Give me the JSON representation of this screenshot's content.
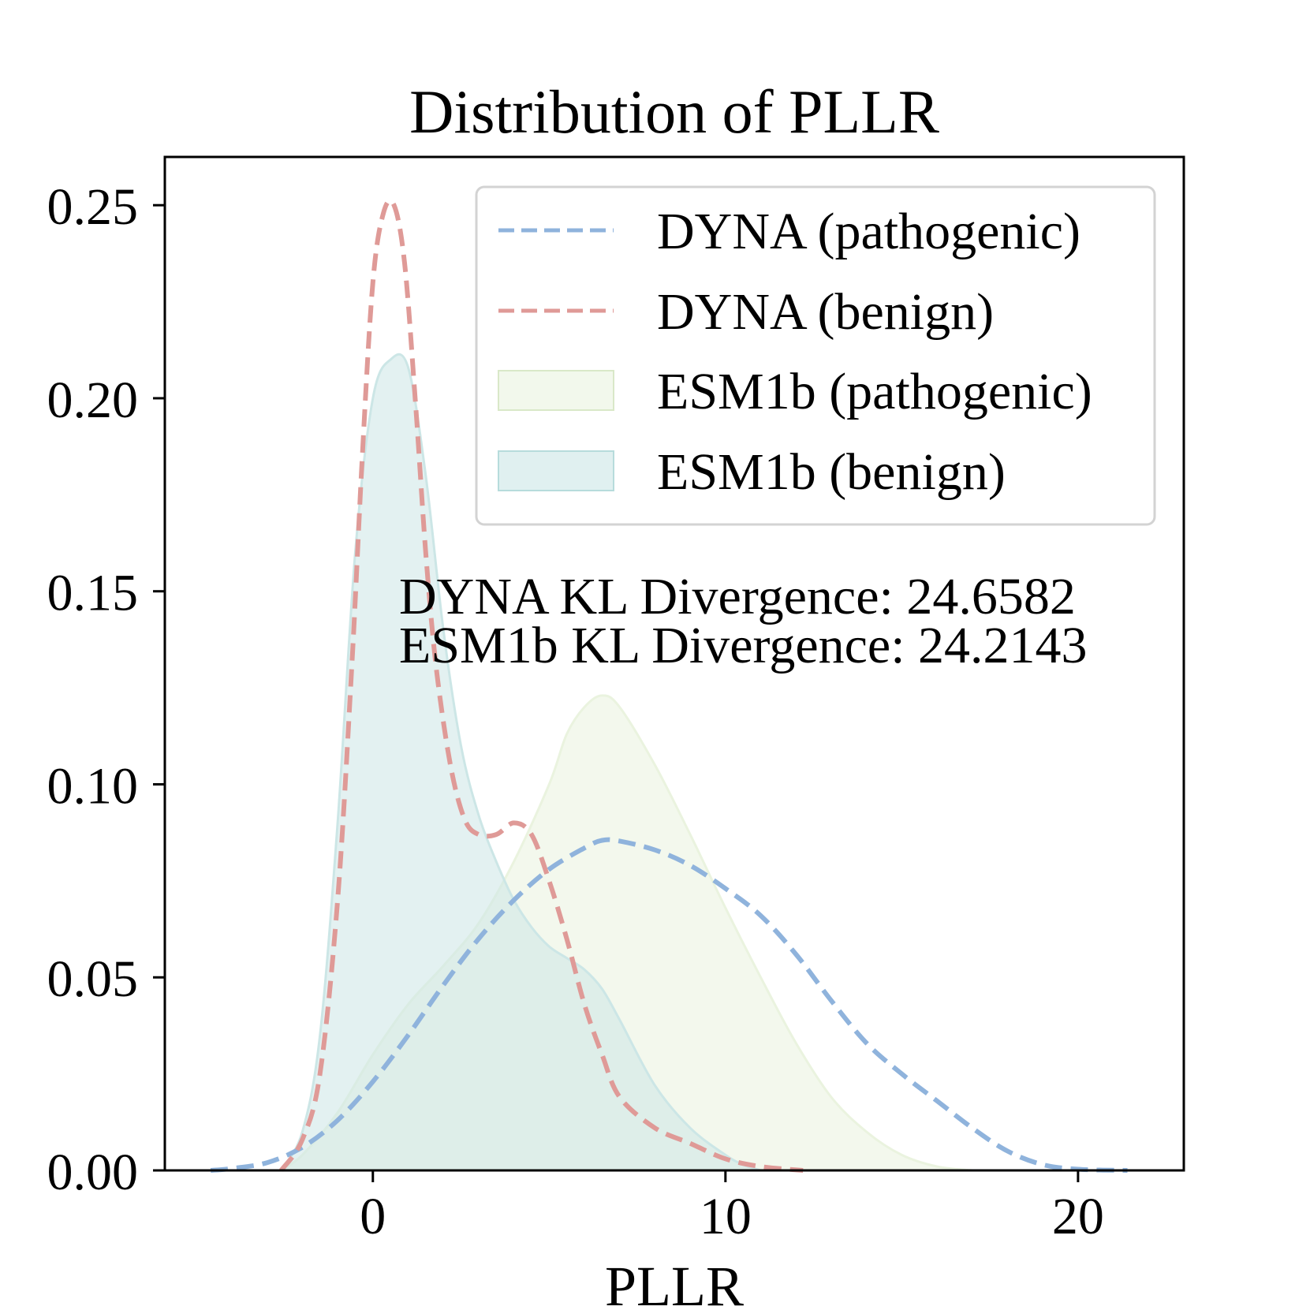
{
  "chart_data": {
    "type": "area",
    "title": "Distribution of PLLR",
    "xlabel": "PLLR",
    "ylabel": "",
    "xlim": [
      -5.9,
      23.0
    ],
    "ylim": [
      0,
      0.2625
    ],
    "xticks": [
      0,
      10,
      20
    ],
    "xtick_labels": [
      "0",
      "10",
      "20"
    ],
    "yticks": [
      0,
      0.05,
      0.1,
      0.15,
      0.2,
      0.25
    ],
    "ytick_labels": [
      "0.00",
      "0.05",
      "0.10",
      "0.15",
      "0.20",
      "0.25"
    ],
    "grid": false,
    "legend_position": "top-right",
    "annotations": [
      "DYNA KL Divergence: 24.6582",
      "ESM1b KL Divergence: 24.2143"
    ],
    "series": [
      {
        "name": "DYNA (pathogenic)",
        "style": "dashed-line",
        "color": "#8fb3dc",
        "x": [
          -4.6,
          -4.0,
          -3.0,
          -2.0,
          -1.0,
          0.0,
          1.0,
          2.0,
          3.0,
          4.0,
          5.0,
          6.0,
          6.5,
          7.0,
          8.0,
          9.0,
          10.0,
          11.0,
          12.0,
          13.0,
          14.0,
          15.0,
          16.0,
          17.0,
          18.0,
          19.0,
          20.0,
          21.4
        ],
        "y": [
          0.0,
          0.0005,
          0.002,
          0.006,
          0.013,
          0.023,
          0.035,
          0.048,
          0.06,
          0.07,
          0.078,
          0.0835,
          0.0855,
          0.0853,
          0.083,
          0.079,
          0.073,
          0.066,
          0.056,
          0.044,
          0.033,
          0.025,
          0.018,
          0.011,
          0.005,
          0.0015,
          0.0003,
          0.0
        ]
      },
      {
        "name": "DYNA (benign)",
        "style": "dashed-line",
        "color": "#df9a97",
        "x": [
          -2.6,
          -2.0,
          -1.5,
          -1.0,
          -0.6,
          -0.3,
          0.0,
          0.3,
          0.6,
          0.9,
          1.2,
          1.5,
          1.8,
          2.2,
          2.6,
          3.0,
          3.5,
          4.0,
          4.5,
          5.0,
          5.5,
          6.0,
          6.5,
          7.0,
          8.0,
          9.0,
          10.0,
          11.0,
          12.2
        ],
        "y": [
          0.0,
          0.008,
          0.025,
          0.07,
          0.13,
          0.185,
          0.23,
          0.248,
          0.25,
          0.235,
          0.2,
          0.16,
          0.13,
          0.105,
          0.091,
          0.087,
          0.087,
          0.09,
          0.087,
          0.075,
          0.06,
          0.043,
          0.03,
          0.019,
          0.011,
          0.007,
          0.003,
          0.001,
          0.0
        ]
      },
      {
        "name": "ESM1b (pathogenic)",
        "style": "filled-area",
        "color": "#eaf3df",
        "x": [
          -2.6,
          -2.0,
          -1.0,
          0.0,
          1.0,
          2.0,
          3.0,
          4.0,
          5.0,
          5.5,
          6.0,
          6.5,
          7.0,
          8.0,
          9.0,
          10.0,
          11.0,
          12.0,
          13.0,
          14.0,
          15.0,
          16.0,
          17.0
        ],
        "y": [
          0.0,
          0.004,
          0.015,
          0.03,
          0.043,
          0.053,
          0.064,
          0.08,
          0.1,
          0.113,
          0.12,
          0.123,
          0.12,
          0.105,
          0.087,
          0.068,
          0.05,
          0.033,
          0.019,
          0.01,
          0.004,
          0.001,
          0.0
        ]
      },
      {
        "name": "ESM1b (benign)",
        "style": "filled-area",
        "color": "#cce6e6",
        "x": [
          -2.6,
          -2.0,
          -1.5,
          -1.0,
          -0.5,
          0.0,
          0.5,
          1.0,
          1.5,
          2.0,
          2.5,
          3.0,
          3.5,
          4.0,
          4.5,
          5.0,
          5.5,
          6.0,
          6.5,
          7.0,
          8.0,
          9.0,
          10.0,
          10.5,
          11.0
        ],
        "y": [
          0.0,
          0.01,
          0.035,
          0.09,
          0.16,
          0.2,
          0.21,
          0.208,
          0.18,
          0.14,
          0.11,
          0.092,
          0.08,
          0.07,
          0.063,
          0.058,
          0.055,
          0.052,
          0.047,
          0.039,
          0.022,
          0.011,
          0.004,
          0.0015,
          0.0
        ]
      }
    ]
  }
}
